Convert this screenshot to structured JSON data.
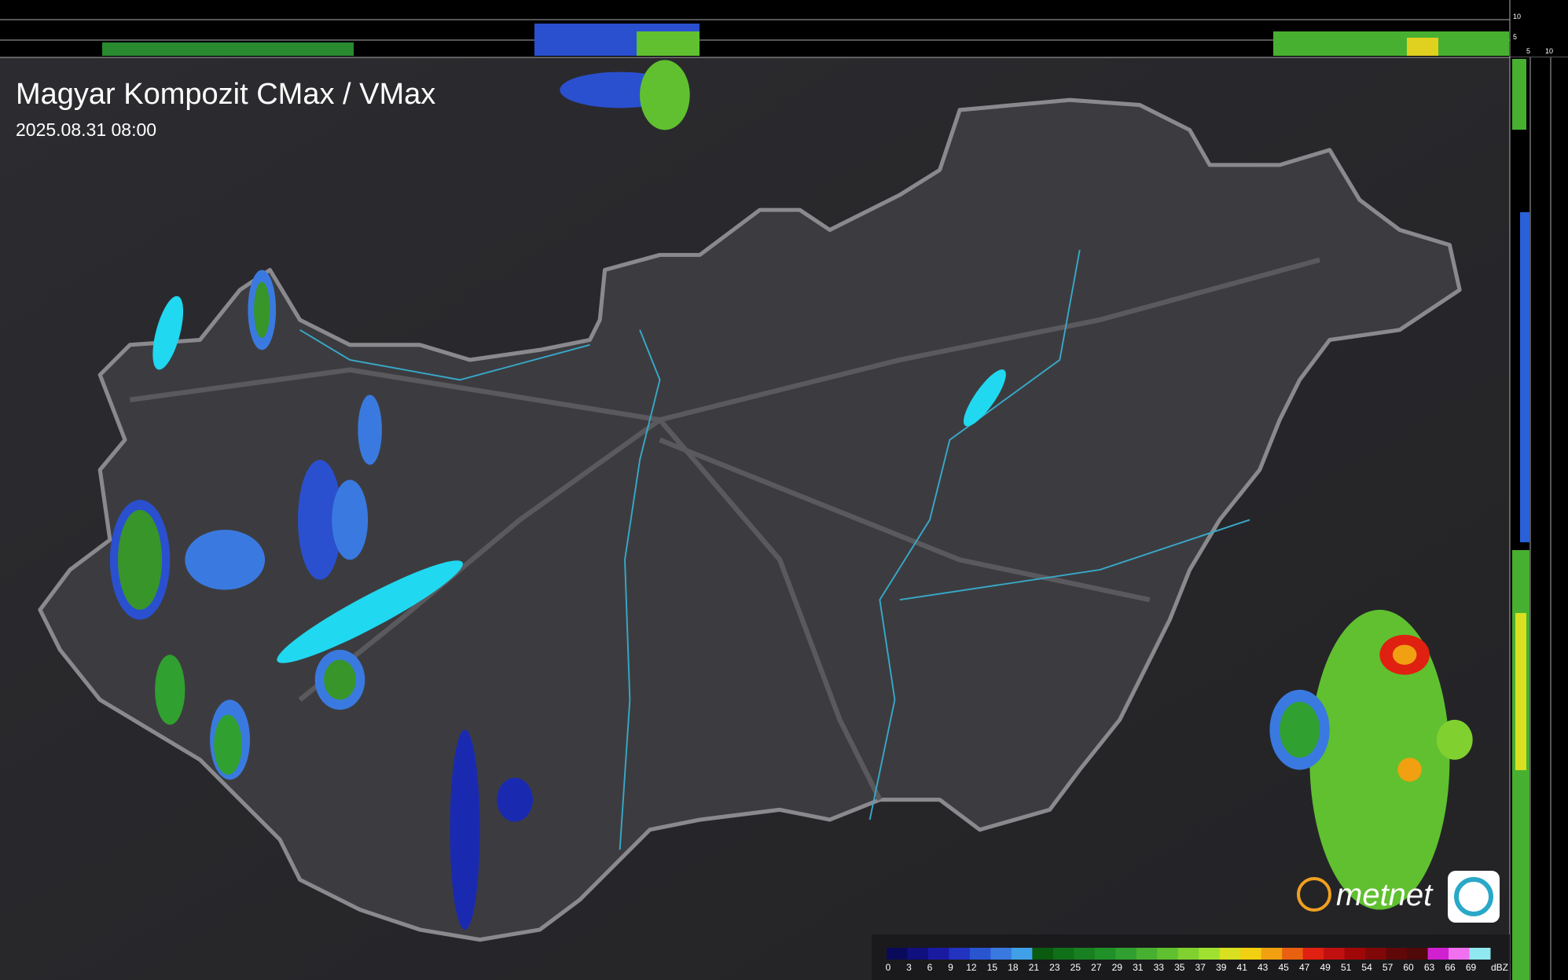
{
  "header": {
    "title": "Magyar Kompozit CMax / VMax",
    "timestamp": "2025.08.31 08:00"
  },
  "legend": {
    "ticks": [
      0,
      3,
      6,
      9,
      12,
      15,
      18,
      21,
      23,
      25,
      27,
      29,
      31,
      33,
      35,
      37,
      39,
      41,
      43,
      45,
      47,
      49,
      51,
      54,
      57,
      60,
      63,
      66,
      69
    ],
    "colors": [
      "#0a0a5a",
      "#10107e",
      "#1a1aa0",
      "#2233c0",
      "#2a55d0",
      "#3a7ae0",
      "#40a0e8",
      "#0a5a10",
      "#107018",
      "#188020",
      "#209028",
      "#30a030",
      "#48b030",
      "#60c030",
      "#80d030",
      "#a0e030",
      "#d8e020",
      "#f0d010",
      "#f0a010",
      "#e86010",
      "#e02010",
      "#c01010",
      "#a00808",
      "#800808",
      "#600808",
      "#500808",
      "#d020d0",
      "#f070f0",
      "#90e8f0"
    ],
    "unit": "dBZ"
  },
  "top_profile": {
    "labels": [
      "10",
      "5"
    ]
  },
  "side_profile": {
    "labels": [
      "5",
      "10"
    ]
  },
  "logo": {
    "text": "metnet"
  }
}
